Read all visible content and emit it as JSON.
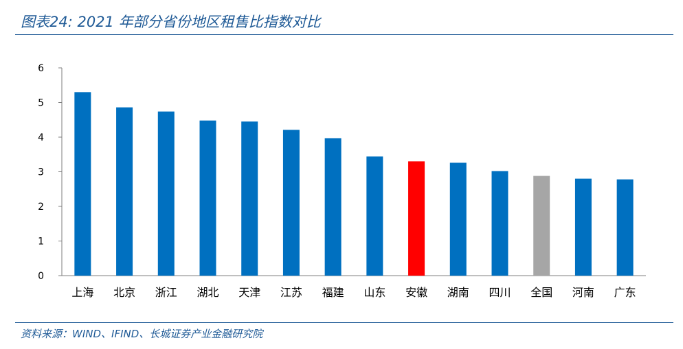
{
  "figure_title": "图表24:  2021 年部分省份地区租售比指数对比",
  "source_note": "资料来源：WIND、IFIND、长城证券产业金融研究院",
  "colors": {
    "default_bar": "#0070c0",
    "highlight_bar": "#ff0000",
    "national_bar": "#a6a6a6",
    "rule": "#1f5a96"
  },
  "chart_data": {
    "type": "bar",
    "title": "",
    "xlabel": "",
    "ylabel": "",
    "ylim": [
      0,
      6
    ],
    "yticks": [
      0,
      1,
      2,
      3,
      4,
      5,
      6
    ],
    "grid": false,
    "legend": "none",
    "categories": [
      "上海",
      "北京",
      "浙江",
      "湖北",
      "天津",
      "江苏",
      "福建",
      "山东",
      "安徽",
      "湖南",
      "四川",
      "全国",
      "河南",
      "广东"
    ],
    "values": [
      5.3,
      4.86,
      4.74,
      4.48,
      4.45,
      4.21,
      3.97,
      3.44,
      3.3,
      3.26,
      3.02,
      2.88,
      2.8,
      2.78
    ],
    "bar_colors": [
      "#0070c0",
      "#0070c0",
      "#0070c0",
      "#0070c0",
      "#0070c0",
      "#0070c0",
      "#0070c0",
      "#0070c0",
      "#ff0000",
      "#0070c0",
      "#0070c0",
      "#a6a6a6",
      "#0070c0",
      "#0070c0"
    ]
  }
}
